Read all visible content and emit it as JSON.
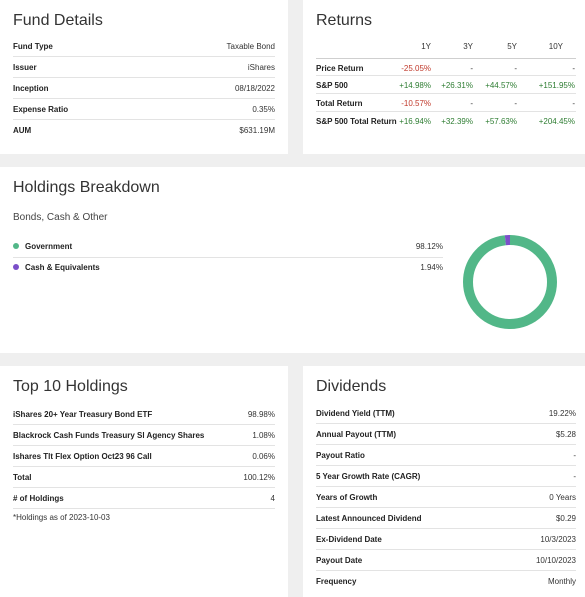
{
  "fund_details": {
    "title": "Fund Details",
    "rows": [
      {
        "label": "Fund Type",
        "value": "Taxable Bond"
      },
      {
        "label": "Issuer",
        "value": "iShares"
      },
      {
        "label": "Inception",
        "value": "08/18/2022"
      },
      {
        "label": "Expense Ratio",
        "value": "0.35%"
      },
      {
        "label": "AUM",
        "value": "$631.19M"
      }
    ]
  },
  "returns": {
    "title": "Returns",
    "columns": [
      "1Y",
      "3Y",
      "5Y",
      "10Y"
    ],
    "rows": [
      {
        "label": "Price Return",
        "values": [
          "-25.05%",
          "-",
          "-",
          "-"
        ]
      },
      {
        "label": "S&P 500",
        "values": [
          "+14.98%",
          "+26.31%",
          "+44.57%",
          "+151.95%"
        ]
      },
      {
        "label": "Total Return",
        "values": [
          "-10.57%",
          "-",
          "-",
          "-"
        ]
      },
      {
        "label": "S&P 500 Total Return",
        "values": [
          "+16.94%",
          "+32.39%",
          "+57.63%",
          "+204.45%"
        ]
      }
    ],
    "colors": {
      "negative": "#c0392b",
      "positive": "#2e7d32"
    }
  },
  "holdings_breakdown": {
    "title": "Holdings Breakdown",
    "subtitle": "Bonds, Cash & Other",
    "items": [
      {
        "label": "Government",
        "value": "98.12%",
        "pct": 98.12,
        "color": "#52b788"
      },
      {
        "label": "Cash & Equivalents",
        "value": "1.94%",
        "pct": 1.94,
        "color": "#7b4fc9"
      }
    ]
  },
  "top10": {
    "title": "Top 10 Holdings",
    "rows": [
      {
        "label": "iShares 20+ Year Treasury Bond ETF",
        "value": "98.98%"
      },
      {
        "label": "Blackrock Cash Funds Treasury Sl Agency Shares",
        "value": "1.08%"
      },
      {
        "label": "Ishares Tlt Flex Option Oct23 96 Call",
        "value": "0.06%"
      },
      {
        "label": "Total",
        "value": "100.12%"
      },
      {
        "label": "# of Holdings",
        "value": "4"
      }
    ],
    "note": "*Holdings as of 2023-10-03"
  },
  "dividends": {
    "title": "Dividends",
    "rows": [
      {
        "label": "Dividend Yield (TTM)",
        "value": "19.22%"
      },
      {
        "label": "Annual Payout (TTM)",
        "value": "$5.28"
      },
      {
        "label": "Payout Ratio",
        "value": "-"
      },
      {
        "label": "5 Year Growth Rate (CAGR)",
        "value": "-"
      },
      {
        "label": "Years of Growth",
        "value": "0 Years"
      },
      {
        "label": "Latest Announced Dividend",
        "value": "$0.29"
      },
      {
        "label": "Ex-Dividend Date",
        "value": "10/3/2023"
      },
      {
        "label": "Payout Date",
        "value": "10/10/2023"
      },
      {
        "label": "Frequency",
        "value": "Monthly"
      }
    ]
  }
}
